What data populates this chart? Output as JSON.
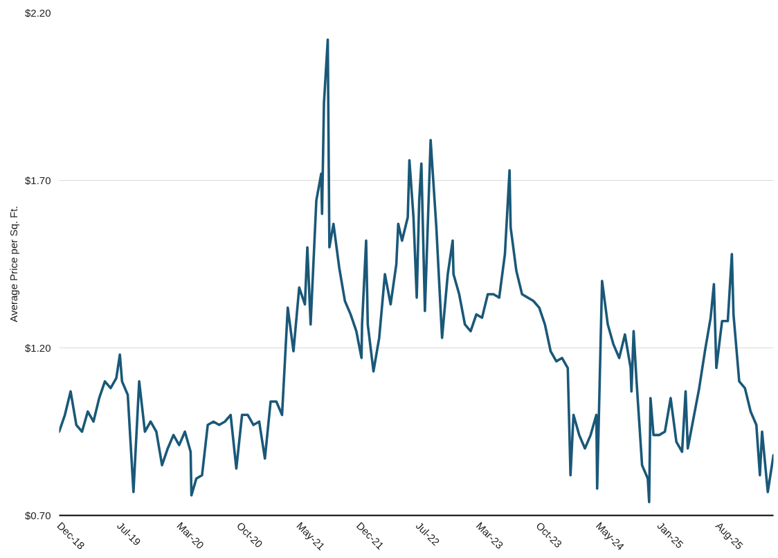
{
  "chart_data": {
    "type": "line",
    "ylabel": "Average Price per Sq. Ft.",
    "x": [
      "2018-12-20",
      "2019-01-10",
      "2019-01-31",
      "2019-02-21",
      "2019-03-14",
      "2019-04-04",
      "2019-04-25",
      "2019-05-16",
      "2019-06-06",
      "2019-06-27",
      "2019-07-18",
      "2019-07-31",
      "2019-08-08",
      "2019-08-29",
      "2019-09-19",
      "2019-10-10",
      "2019-10-31",
      "2019-11-21",
      "2019-12-12",
      "2020-01-02",
      "2020-01-23",
      "2020-02-13",
      "2020-03-05",
      "2020-03-26",
      "2020-04-16",
      "2020-04-19",
      "2020-05-07",
      "2020-05-28",
      "2020-06-18",
      "2020-07-09",
      "2020-07-30",
      "2020-08-20",
      "2020-09-10",
      "2020-10-01",
      "2020-10-22",
      "2020-11-12",
      "2020-12-03",
      "2020-12-24",
      "2021-01-14",
      "2021-02-04",
      "2021-02-25",
      "2021-03-18",
      "2021-04-08",
      "2021-04-29",
      "2021-05-20",
      "2021-06-10",
      "2021-06-19",
      "2021-07-01",
      "2021-07-22",
      "2021-08-09",
      "2021-08-12",
      "2021-08-19",
      "2021-09-02",
      "2021-09-08",
      "2021-09-23",
      "2021-10-14",
      "2021-11-04",
      "2021-11-25",
      "2021-12-16",
      "2022-01-04",
      "2022-01-06",
      "2022-01-21",
      "2022-01-27",
      "2022-02-17",
      "2022-03-10",
      "2022-03-31",
      "2022-04-21",
      "2022-05-12",
      "2022-05-19",
      "2022-06-02",
      "2022-06-23",
      "2022-06-29",
      "2022-07-14",
      "2022-07-26",
      "2022-08-04",
      "2022-08-12",
      "2022-08-25",
      "2022-09-15",
      "2022-10-06",
      "2022-10-27",
      "2022-11-17",
      "2022-12-05",
      "2022-12-08",
      "2022-12-29",
      "2023-01-19",
      "2023-02-09",
      "2023-03-02",
      "2023-03-23",
      "2023-04-13",
      "2023-05-04",
      "2023-05-25",
      "2023-06-15",
      "2023-07-02",
      "2023-07-06",
      "2023-07-27",
      "2023-08-17",
      "2023-09-07",
      "2023-09-28",
      "2023-10-19",
      "2023-11-09",
      "2023-11-30",
      "2023-12-21",
      "2024-01-11",
      "2024-02-01",
      "2024-02-11",
      "2024-02-22",
      "2024-03-14",
      "2024-04-04",
      "2024-04-25",
      "2024-05-16",
      "2024-05-19",
      "2024-06-06",
      "2024-06-27",
      "2024-07-18",
      "2024-08-08",
      "2024-08-29",
      "2024-09-19",
      "2024-09-22",
      "2024-09-30",
      "2024-10-10",
      "2024-10-31",
      "2024-11-21",
      "2024-11-26",
      "2024-12-01",
      "2024-12-12",
      "2025-01-02",
      "2025-01-23",
      "2025-02-13",
      "2025-03-06",
      "2025-03-27",
      "2025-04-09",
      "2025-04-17",
      "2025-05-08",
      "2025-05-29",
      "2025-06-19",
      "2025-07-10",
      "2025-07-22",
      "2025-07-31",
      "2025-08-21",
      "2025-09-11",
      "2025-09-26",
      "2025-10-02",
      "2025-10-23",
      "2025-11-13",
      "2025-12-04",
      "2025-12-25",
      "2026-01-07",
      "2026-01-15",
      "2026-02-05",
      "2026-02-26"
    ],
    "series": [
      {
        "color": "#1a5878",
        "values": [
          0.95,
          1.0,
          1.07,
          0.97,
          0.95,
          1.01,
          0.98,
          1.05,
          1.1,
          1.08,
          1.11,
          1.18,
          1.1,
          1.06,
          0.77,
          1.1,
          0.95,
          0.98,
          0.95,
          0.85,
          0.9,
          0.94,
          0.91,
          0.95,
          0.89,
          0.76,
          0.81,
          0.82,
          0.97,
          0.98,
          0.97,
          0.98,
          1.0,
          0.84,
          1.0,
          1.0,
          0.97,
          0.98,
          0.87,
          1.04,
          1.04,
          1.0,
          1.32,
          1.19,
          1.38,
          1.33,
          1.5,
          1.27,
          1.64,
          1.72,
          1.6,
          1.93,
          2.12,
          1.5,
          1.57,
          1.44,
          1.34,
          1.3,
          1.25,
          1.17,
          1.27,
          1.52,
          1.27,
          1.13,
          1.23,
          1.42,
          1.33,
          1.45,
          1.57,
          1.52,
          1.59,
          1.76,
          1.59,
          1.35,
          1.64,
          1.75,
          1.31,
          1.82,
          1.56,
          1.23,
          1.42,
          1.52,
          1.42,
          1.36,
          1.27,
          1.25,
          1.3,
          1.29,
          1.36,
          1.36,
          1.35,
          1.48,
          1.73,
          1.56,
          1.43,
          1.36,
          1.35,
          1.34,
          1.32,
          1.27,
          1.19,
          1.16,
          1.17,
          1.14,
          0.82,
          1.0,
          0.94,
          0.9,
          0.94,
          1.0,
          0.78,
          1.4,
          1.27,
          1.21,
          1.17,
          1.24,
          1.14,
          1.07,
          1.25,
          1.11,
          0.85,
          0.81,
          0.74,
          1.05,
          0.94,
          0.94,
          0.95,
          1.05,
          0.92,
          0.89,
          1.07,
          0.9,
          0.99,
          1.08,
          1.19,
          1.29,
          1.39,
          1.14,
          1.28,
          1.28,
          1.48,
          1.3,
          1.1,
          1.08,
          1.01,
          0.97,
          0.82,
          0.95,
          0.77,
          0.88
        ]
      }
    ],
    "xlim": [
      "2018-12-20",
      "2026-02-26"
    ],
    "xticks": [
      {
        "value": "2018-12-20",
        "label": "Dec-18"
      },
      {
        "value": "2019-07-28",
        "label": "Jul-19"
      },
      {
        "value": "2020-03-04",
        "label": "Mar-20"
      },
      {
        "value": "2020-10-10",
        "label": "Oct-20"
      },
      {
        "value": "2021-05-18",
        "label": "May-21"
      },
      {
        "value": "2021-12-24",
        "label": "Dec-21"
      },
      {
        "value": "2022-07-30",
        "label": "Jul-22"
      },
      {
        "value": "2023-03-09",
        "label": "Mar-23"
      },
      {
        "value": "2023-10-15",
        "label": "Oct-23"
      },
      {
        "value": "2024-05-22",
        "label": "May-24"
      },
      {
        "value": "2025-01-02",
        "label": "Jan-25"
      },
      {
        "value": "2025-08-05",
        "label": "Aug-25"
      }
    ],
    "ylim": [
      0.7,
      2.2
    ],
    "yticks": [
      {
        "value": 0.7,
        "label": "$0.70"
      },
      {
        "value": 1.2,
        "label": "$1.20"
      },
      {
        "value": 1.7,
        "label": "$1.70"
      },
      {
        "value": 2.2,
        "label": "$2.20"
      }
    ],
    "grid": "y",
    "line_style": "solid"
  }
}
